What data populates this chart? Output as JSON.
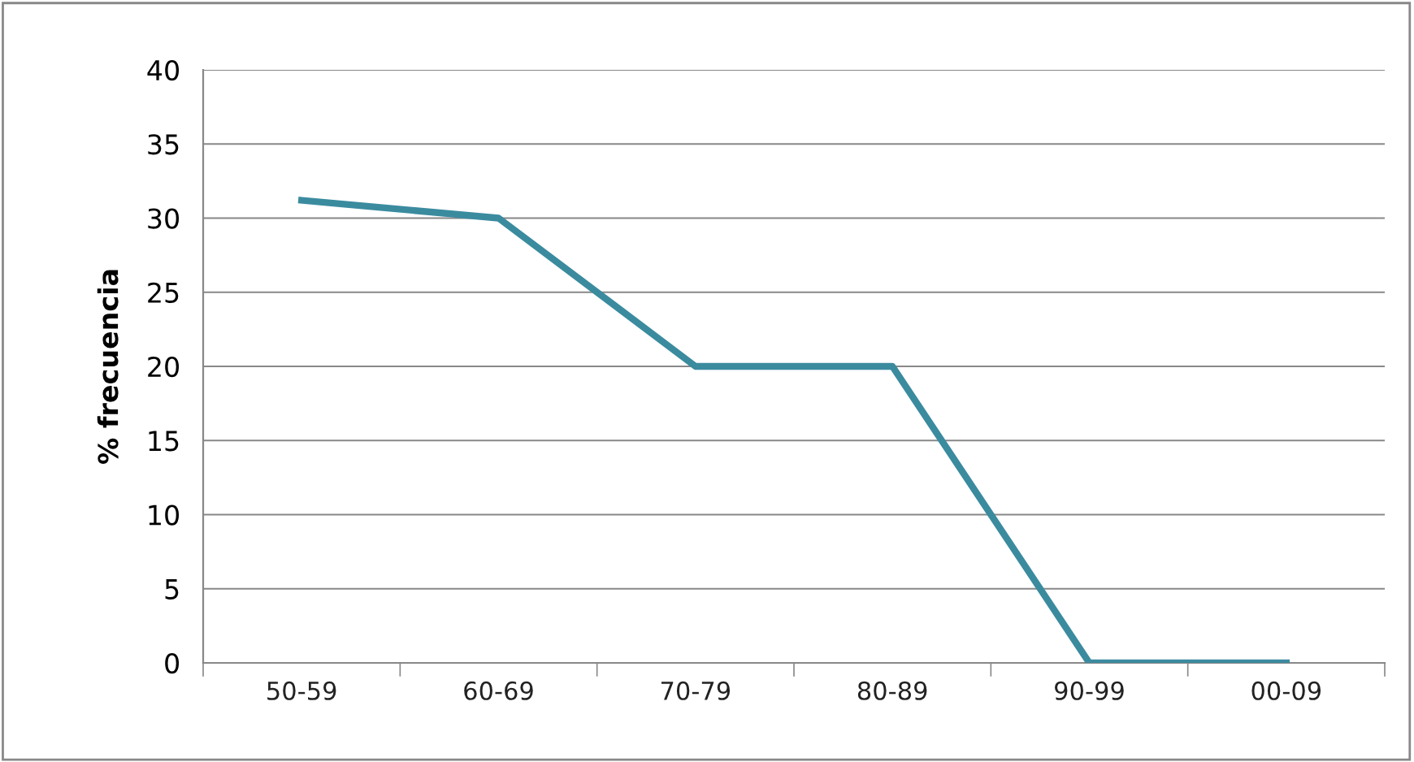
{
  "chart_data": {
    "type": "line",
    "ylabel": "% frecuencia",
    "categories": [
      "50-59",
      "60-69",
      "70-79",
      "80-89",
      "90-99",
      "00-09"
    ],
    "series": [
      {
        "color": "#3b8b9f",
        "values": [
          31.2,
          30,
          20,
          20,
          0,
          0
        ]
      }
    ],
    "ylim": [
      0,
      40
    ],
    "yticks": [
      0,
      5,
      10,
      15,
      20,
      25,
      30,
      35,
      40
    ],
    "grid": "y",
    "legend": false,
    "marker": "none",
    "line_style": "solid"
  }
}
